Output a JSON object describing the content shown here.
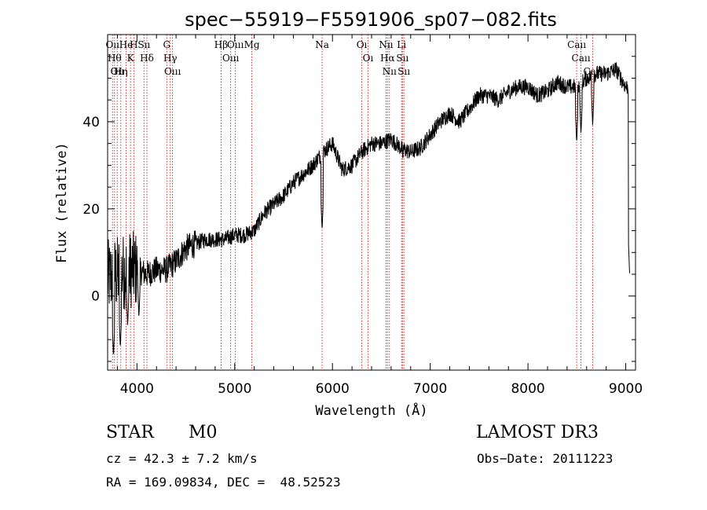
{
  "chart_data": {
    "type": "line",
    "title": "spec−55919−F5591906_sp07−082.fits",
    "xlabel": "Wavelength (Å)",
    "ylabel": "Flux (relative)",
    "xlim": [
      3700,
      9100
    ],
    "ylim": [
      -17,
      60
    ],
    "xticks": [
      4000,
      5000,
      6000,
      7000,
      8000,
      9000
    ],
    "yticks": [
      0,
      20,
      40
    ],
    "series": [
      {
        "name": "flux",
        "x": [
          3700,
          3800,
          3900,
          4000,
          4100,
          4200,
          4300,
          4400,
          4500,
          4600,
          4700,
          4800,
          4900,
          5000,
          5100,
          5200,
          5300,
          5400,
          5500,
          5600,
          5700,
          5800,
          5900,
          6000,
          6100,
          6200,
          6300,
          6400,
          6500,
          6600,
          6700,
          6800,
          6900,
          7000,
          7100,
          7200,
          7300,
          7400,
          7500,
          7600,
          7700,
          7800,
          7900,
          8000,
          8100,
          8200,
          8300,
          8400,
          8500,
          8600,
          8700,
          8800,
          8900,
          9000
        ],
        "y": [
          4,
          5,
          6,
          6,
          5,
          6,
          6,
          8,
          11,
          12,
          13,
          13,
          13,
          14,
          14,
          15,
          19,
          21,
          23,
          26,
          28,
          30,
          33,
          35,
          29,
          30,
          33,
          35,
          35,
          36,
          34,
          33,
          34,
          37,
          40,
          42,
          40,
          43,
          46,
          46,
          45,
          47,
          48,
          48,
          46,
          47,
          49,
          48,
          48,
          50,
          51,
          51,
          52,
          48
        ]
      }
    ],
    "absorption_dips": [
      {
        "x": 3760,
        "y": -14
      },
      {
        "x": 3830,
        "y": -12
      },
      {
        "x": 3905,
        "y": -7
      },
      {
        "x": 4020,
        "y": -5
      },
      {
        "x": 5894,
        "y": 15
      },
      {
        "x": 6720,
        "y": 31
      },
      {
        "x": 8498,
        "y": 35
      },
      {
        "x": 8542,
        "y": 37
      },
      {
        "x": 8662,
        "y": 39
      },
      {
        "x": 9040,
        "y": 5
      }
    ],
    "line_markers": [
      {
        "x": 3750,
        "labels": [
          "Oıı"
        ]
      },
      {
        "x": 3771,
        "labels": [
          "Hθ"
        ]
      },
      {
        "x": 3798,
        "labels": [
          "Oıı"
        ]
      },
      {
        "x": 3835,
        "labels": [
          "Hη"
        ]
      },
      {
        "x": 3889,
        "labels": [
          "He"
        ]
      },
      {
        "x": 3934,
        "labels": [
          "K"
        ]
      },
      {
        "x": 3968,
        "labels": [
          "H"
        ]
      },
      {
        "x": 4072,
        "labels": [
          "Sıı"
        ]
      },
      {
        "x": 4102,
        "labels": [
          "Hδ"
        ]
      },
      {
        "x": 4305,
        "labels": [
          "G"
        ]
      },
      {
        "x": 4341,
        "labels": [
          "Hγ"
        ]
      },
      {
        "x": 4364,
        "labels": [
          "Oııı"
        ]
      },
      {
        "x": 4861,
        "labels": [
          "Hβ"
        ]
      },
      {
        "x": 4959,
        "labels": [
          "Oııı"
        ]
      },
      {
        "x": 5007,
        "labels": [
          "Oııı"
        ]
      },
      {
        "x": 5175,
        "labels": [
          "Mg"
        ]
      },
      {
        "x": 5894,
        "labels": [
          "Na"
        ]
      },
      {
        "x": 6300,
        "labels": [
          "Oı"
        ]
      },
      {
        "x": 6364,
        "labels": [
          "Oı"
        ]
      },
      {
        "x": 6548,
        "labels": [
          "Nıı"
        ]
      },
      {
        "x": 6563,
        "labels": [
          "Hα"
        ]
      },
      {
        "x": 6583,
        "labels": [
          "Nıı"
        ]
      },
      {
        "x": 6707,
        "labels": [
          "Li"
        ]
      },
      {
        "x": 6716,
        "labels": [
          "Sıı"
        ]
      },
      {
        "x": 6731,
        "labels": [
          "Sıı"
        ]
      },
      {
        "x": 8498,
        "labels": [
          "Caıı"
        ]
      },
      {
        "x": 8542,
        "labels": [
          "Caıı"
        ]
      },
      {
        "x": 8662,
        "labels": [
          "Caıı"
        ]
      }
    ],
    "colors": {
      "spectrum": "#000000",
      "marker": "#cc0000",
      "axes": "#000000"
    }
  },
  "info": {
    "class_label": "STAR",
    "subclass_label": "M0",
    "survey": "LAMOST DR3",
    "redshift": "cz = 42.3 ± 7.2 km/s",
    "obs_date": "Obs−Date: 20111223",
    "coords": "RA = 169.09834, DEC =  48.52523"
  }
}
